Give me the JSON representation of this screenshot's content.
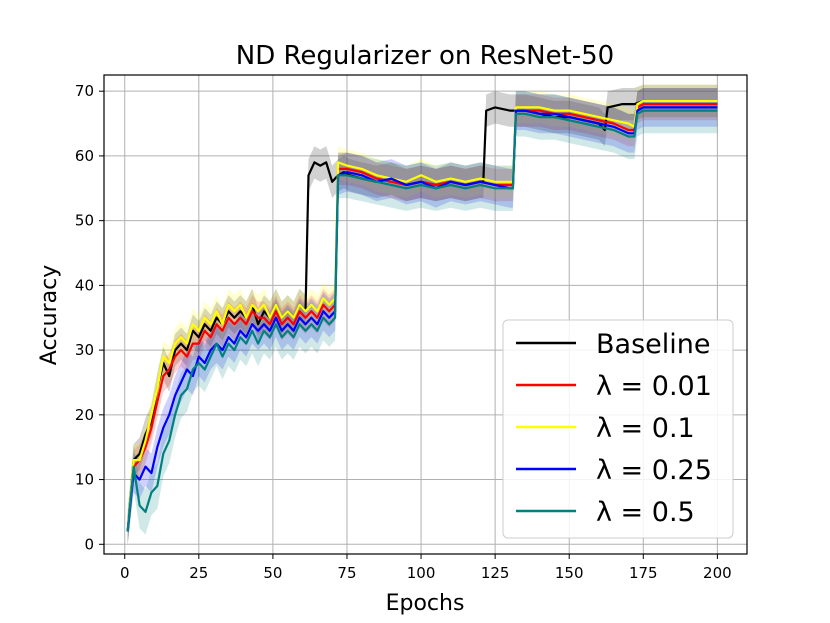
{
  "chart_data": {
    "type": "line",
    "title": "ND Regularizer on ResNet-50",
    "xlabel": "Epochs",
    "ylabel": "Accuracy",
    "xlim": [
      -7,
      210
    ],
    "ylim": [
      -1.5,
      72.5
    ],
    "xticks": [
      0,
      25,
      50,
      75,
      100,
      125,
      150,
      175,
      200
    ],
    "yticks": [
      0,
      10,
      20,
      30,
      40,
      50,
      60,
      70
    ],
    "grid": true,
    "legend_position": "lower-right",
    "series": [
      {
        "name": "Baseline",
        "color": "#000000",
        "points": [
          [
            1,
            2
          ],
          [
            3,
            13
          ],
          [
            5,
            14
          ],
          [
            7,
            17
          ],
          [
            9,
            19
          ],
          [
            11,
            24
          ],
          [
            13,
            28
          ],
          [
            15,
            26
          ],
          [
            17,
            30
          ],
          [
            19,
            31
          ],
          [
            21,
            30
          ],
          [
            23,
            33
          ],
          [
            25,
            32
          ],
          [
            27,
            34
          ],
          [
            29,
            33
          ],
          [
            31,
            35
          ],
          [
            33,
            34
          ],
          [
            35,
            36
          ],
          [
            37,
            35
          ],
          [
            39,
            36
          ],
          [
            41,
            35
          ],
          [
            43,
            37
          ],
          [
            45,
            34
          ],
          [
            47,
            36
          ],
          [
            49,
            35
          ],
          [
            51,
            37
          ],
          [
            53,
            35
          ],
          [
            55,
            36
          ],
          [
            57,
            35
          ],
          [
            59,
            37
          ],
          [
            61,
            36
          ],
          [
            62,
            57
          ],
          [
            64,
            59
          ],
          [
            66,
            58.5
          ],
          [
            68,
            59
          ],
          [
            70,
            56
          ],
          [
            72,
            57
          ],
          [
            74,
            57.5
          ],
          [
            76,
            57
          ],
          [
            80,
            56.5
          ],
          [
            85,
            56
          ],
          [
            90,
            56.5
          ],
          [
            95,
            55.5
          ],
          [
            100,
            56
          ],
          [
            105,
            55.5
          ],
          [
            110,
            56
          ],
          [
            115,
            55.5
          ],
          [
            120,
            56
          ],
          [
            121,
            56
          ],
          [
            122,
            67
          ],
          [
            125,
            67.5
          ],
          [
            130,
            67
          ],
          [
            133,
            67
          ],
          [
            135,
            67
          ],
          [
            140,
            66.5
          ],
          [
            145,
            66
          ],
          [
            150,
            66
          ],
          [
            155,
            65.5
          ],
          [
            160,
            65
          ],
          [
            162,
            64
          ],
          [
            163,
            67.5
          ],
          [
            168,
            68
          ],
          [
            172,
            68
          ],
          [
            175,
            68.5
          ],
          [
            180,
            68.5
          ],
          [
            190,
            68.5
          ],
          [
            200,
            68.5
          ]
        ],
        "band": 2.5
      },
      {
        "name": "λ = 0.01",
        "color": "#ff0000",
        "points": [
          [
            1,
            2
          ],
          [
            3,
            12
          ],
          [
            5,
            13
          ],
          [
            7,
            15
          ],
          [
            9,
            18
          ],
          [
            11,
            22
          ],
          [
            13,
            26
          ],
          [
            15,
            27
          ],
          [
            17,
            29
          ],
          [
            19,
            30
          ],
          [
            21,
            29
          ],
          [
            23,
            31
          ],
          [
            25,
            31
          ],
          [
            27,
            33
          ],
          [
            29,
            32
          ],
          [
            31,
            34
          ],
          [
            33,
            33
          ],
          [
            35,
            35
          ],
          [
            37,
            34
          ],
          [
            39,
            35
          ],
          [
            41,
            34
          ],
          [
            43,
            36
          ],
          [
            45,
            35
          ],
          [
            47,
            35
          ],
          [
            49,
            34
          ],
          [
            51,
            36
          ],
          [
            53,
            34
          ],
          [
            55,
            35
          ],
          [
            57,
            34
          ],
          [
            59,
            36
          ],
          [
            61,
            35
          ],
          [
            63,
            36
          ],
          [
            65,
            35
          ],
          [
            67,
            37
          ],
          [
            69,
            36
          ],
          [
            71,
            37
          ],
          [
            72,
            58
          ],
          [
            75,
            58
          ],
          [
            80,
            57.5
          ],
          [
            85,
            56.5
          ],
          [
            90,
            56
          ],
          [
            95,
            55.5
          ],
          [
            100,
            56
          ],
          [
            105,
            55.5
          ],
          [
            110,
            56
          ],
          [
            115,
            55.5
          ],
          [
            120,
            56
          ],
          [
            125,
            55.5
          ],
          [
            130,
            55.5
          ],
          [
            131,
            55.5
          ],
          [
            132,
            67
          ],
          [
            135,
            67
          ],
          [
            140,
            67
          ],
          [
            145,
            66.5
          ],
          [
            150,
            66.5
          ],
          [
            155,
            66
          ],
          [
            160,
            65.5
          ],
          [
            165,
            65
          ],
          [
            170,
            64
          ],
          [
            172,
            64
          ],
          [
            173,
            67.5
          ],
          [
            175,
            68
          ],
          [
            180,
            68
          ],
          [
            190,
            68
          ],
          [
            200,
            68
          ]
        ],
        "band": 2.5
      },
      {
        "name": "λ = 0.1",
        "color": "#ffff00",
        "points": [
          [
            1,
            2
          ],
          [
            3,
            13
          ],
          [
            5,
            13
          ],
          [
            7,
            16
          ],
          [
            9,
            20
          ],
          [
            11,
            24
          ],
          [
            13,
            29
          ],
          [
            15,
            28
          ],
          [
            17,
            31
          ],
          [
            19,
            32
          ],
          [
            21,
            31
          ],
          [
            23,
            34
          ],
          [
            25,
            33
          ],
          [
            27,
            35
          ],
          [
            29,
            34
          ],
          [
            31,
            36
          ],
          [
            33,
            34
          ],
          [
            35,
            37
          ],
          [
            37,
            36
          ],
          [
            39,
            37
          ],
          [
            41,
            35
          ],
          [
            43,
            37
          ],
          [
            45,
            36
          ],
          [
            47,
            37
          ],
          [
            49,
            35
          ],
          [
            51,
            37
          ],
          [
            53,
            35
          ],
          [
            55,
            36
          ],
          [
            57,
            35
          ],
          [
            59,
            37
          ],
          [
            61,
            36
          ],
          [
            63,
            37
          ],
          [
            65,
            36
          ],
          [
            67,
            38
          ],
          [
            69,
            37
          ],
          [
            71,
            38
          ],
          [
            72,
            59
          ],
          [
            75,
            58.5
          ],
          [
            80,
            58
          ],
          [
            85,
            57
          ],
          [
            90,
            56.5
          ],
          [
            95,
            56
          ],
          [
            100,
            57
          ],
          [
            105,
            56
          ],
          [
            110,
            56.5
          ],
          [
            115,
            56
          ],
          [
            120,
            56.5
          ],
          [
            125,
            56
          ],
          [
            130,
            56
          ],
          [
            131,
            56
          ],
          [
            132,
            67.5
          ],
          [
            135,
            67.5
          ],
          [
            140,
            67.5
          ],
          [
            145,
            67
          ],
          [
            150,
            67
          ],
          [
            155,
            66.5
          ],
          [
            160,
            66
          ],
          [
            165,
            65.5
          ],
          [
            170,
            65
          ],
          [
            172,
            64.5
          ],
          [
            173,
            68
          ],
          [
            175,
            68.5
          ],
          [
            180,
            68.5
          ],
          [
            190,
            68.5
          ],
          [
            200,
            68.5
          ]
        ],
        "band": 2.5
      },
      {
        "name": "λ = 0.25",
        "color": "#0000ff",
        "points": [
          [
            1,
            2
          ],
          [
            3,
            11
          ],
          [
            5,
            10
          ],
          [
            7,
            12
          ],
          [
            9,
            11
          ],
          [
            11,
            15
          ],
          [
            13,
            18
          ],
          [
            15,
            20
          ],
          [
            17,
            23
          ],
          [
            19,
            25
          ],
          [
            21,
            27
          ],
          [
            23,
            26
          ],
          [
            25,
            29
          ],
          [
            27,
            28
          ],
          [
            29,
            30
          ],
          [
            31,
            31
          ],
          [
            33,
            30
          ],
          [
            35,
            32
          ],
          [
            37,
            31
          ],
          [
            39,
            33
          ],
          [
            41,
            32
          ],
          [
            43,
            34
          ],
          [
            45,
            33
          ],
          [
            47,
            34
          ],
          [
            49,
            33
          ],
          [
            51,
            35
          ],
          [
            53,
            33
          ],
          [
            55,
            34
          ],
          [
            57,
            33
          ],
          [
            59,
            35
          ],
          [
            61,
            34
          ],
          [
            63,
            35
          ],
          [
            65,
            34
          ],
          [
            67,
            36
          ],
          [
            69,
            35
          ],
          [
            71,
            36
          ],
          [
            72,
            57
          ],
          [
            75,
            57.5
          ],
          [
            80,
            57
          ],
          [
            85,
            56
          ],
          [
            90,
            56.5
          ],
          [
            95,
            55.5
          ],
          [
            100,
            56
          ],
          [
            105,
            55
          ],
          [
            110,
            56
          ],
          [
            115,
            55.5
          ],
          [
            120,
            56
          ],
          [
            125,
            55.5
          ],
          [
            130,
            55
          ],
          [
            131,
            55
          ],
          [
            132,
            67
          ],
          [
            135,
            67
          ],
          [
            140,
            66.5
          ],
          [
            145,
            66.5
          ],
          [
            150,
            66
          ],
          [
            155,
            65.5
          ],
          [
            160,
            65
          ],
          [
            165,
            64.5
          ],
          [
            170,
            63.5
          ],
          [
            172,
            63.5
          ],
          [
            173,
            67
          ],
          [
            175,
            67.5
          ],
          [
            180,
            67.5
          ],
          [
            190,
            67.5
          ],
          [
            200,
            67.5
          ]
        ],
        "band": 3
      },
      {
        "name": "λ = 0.5",
        "color": "#008080",
        "points": [
          [
            1,
            2
          ],
          [
            3,
            12
          ],
          [
            5,
            6
          ],
          [
            7,
            5
          ],
          [
            9,
            8
          ],
          [
            11,
            9
          ],
          [
            13,
            14
          ],
          [
            15,
            16
          ],
          [
            17,
            20
          ],
          [
            19,
            23
          ],
          [
            21,
            24
          ],
          [
            23,
            27
          ],
          [
            25,
            28
          ],
          [
            27,
            27
          ],
          [
            29,
            29
          ],
          [
            31,
            31
          ],
          [
            33,
            29
          ],
          [
            35,
            31
          ],
          [
            37,
            30
          ],
          [
            39,
            32
          ],
          [
            41,
            31
          ],
          [
            43,
            33
          ],
          [
            45,
            31
          ],
          [
            47,
            33
          ],
          [
            49,
            32
          ],
          [
            51,
            34
          ],
          [
            53,
            32
          ],
          [
            55,
            33
          ],
          [
            57,
            32
          ],
          [
            59,
            34
          ],
          [
            61,
            33
          ],
          [
            63,
            34
          ],
          [
            65,
            33
          ],
          [
            67,
            35
          ],
          [
            69,
            34
          ],
          [
            71,
            35
          ],
          [
            72,
            57
          ],
          [
            75,
            57
          ],
          [
            80,
            56.5
          ],
          [
            85,
            56
          ],
          [
            90,
            55.5
          ],
          [
            95,
            55
          ],
          [
            100,
            55.5
          ],
          [
            105,
            55
          ],
          [
            110,
            55.5
          ],
          [
            115,
            55
          ],
          [
            120,
            55.5
          ],
          [
            125,
            55
          ],
          [
            130,
            55
          ],
          [
            131,
            55
          ],
          [
            132,
            66.5
          ],
          [
            135,
            66.5
          ],
          [
            140,
            66
          ],
          [
            145,
            66
          ],
          [
            150,
            65.5
          ],
          [
            155,
            65
          ],
          [
            160,
            64.5
          ],
          [
            165,
            64
          ],
          [
            170,
            63
          ],
          [
            172,
            63
          ],
          [
            173,
            66.5
          ],
          [
            175,
            67
          ],
          [
            180,
            67
          ],
          [
            190,
            67
          ],
          [
            200,
            67
          ]
        ],
        "band": 3.5
      }
    ]
  }
}
